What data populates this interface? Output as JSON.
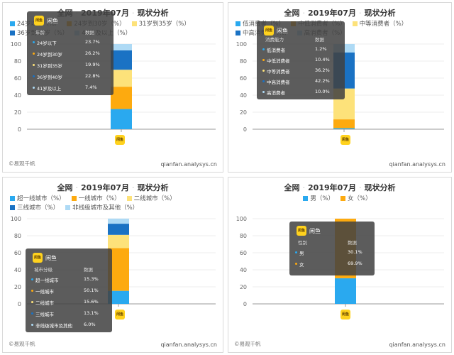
{
  "colors": {
    "c1": "#2aa9ef",
    "c2": "#fdaa0f",
    "c3": "#fde27a",
    "c4": "#1a72c4",
    "c5": "#aedaf5"
  },
  "panels": [
    {
      "title_a": "全网",
      "title_b": "2019年07月",
      "title_c": "现状分析",
      "legend": [
        {
          "label": "24岁以下（%）",
          "color": "#2aa9ef"
        },
        {
          "label": "24岁到30岁（%）",
          "color": "#fdaa0f"
        },
        {
          "label": "31岁到35岁（%）",
          "color": "#fde27a"
        },
        {
          "label": "36岁到40岁（%）",
          "color": "#1a72c4"
        },
        {
          "label": "41岁及以上（%）",
          "color": "#aedaf5"
        }
      ],
      "tooltip": {
        "app": "闲鱼",
        "col1": "年龄",
        "col2": "数据",
        "rows": [
          {
            "label": "24岁以下",
            "value": "23.7%"
          },
          {
            "label": "24岁到30岁",
            "value": "26.2%"
          },
          {
            "label": "31岁到35岁",
            "value": "19.9%"
          },
          {
            "label": "36岁到40岁",
            "value": "22.8%"
          },
          {
            "label": "41岁及以上",
            "value": "7.4%"
          }
        ]
      },
      "logo_text": "闲鱼",
      "footer_left": "©易观千帆",
      "footer_right": "qianfan.analysys.cn"
    },
    {
      "title_a": "全网",
      "title_b": "2019年07月",
      "title_c": "现状分析",
      "legend": [
        {
          "label": "低消费者（%）",
          "color": "#2aa9ef"
        },
        {
          "label": "中低消费者（%）",
          "color": "#fdaa0f"
        },
        {
          "label": "中等消费者（%）",
          "color": "#fde27a"
        },
        {
          "label": "中高消费者（%）",
          "color": "#1a72c4"
        },
        {
          "label": "高消费者（%）",
          "color": "#aedaf5"
        }
      ],
      "tooltip": {
        "app": "闲鱼",
        "col1": "消费能力",
        "col2": "数据",
        "rows": [
          {
            "label": "低消费者",
            "value": "1.2%"
          },
          {
            "label": "中低消费者",
            "value": "10.4%"
          },
          {
            "label": "中等消费者",
            "value": "36.2%"
          },
          {
            "label": "中高消费者",
            "value": "42.2%"
          },
          {
            "label": "高消费者",
            "value": "10.0%"
          }
        ]
      },
      "logo_text": "闲鱼",
      "footer_left": "",
      "footer_right": "qianfan.analysys.cn"
    },
    {
      "title_a": "全网",
      "title_b": "2019年07月",
      "title_c": "现状分析",
      "legend": [
        {
          "label": "超一线城市（%）",
          "color": "#2aa9ef"
        },
        {
          "label": "一线城市（%）",
          "color": "#fdaa0f"
        },
        {
          "label": "二线城市（%）",
          "color": "#fde27a"
        },
        {
          "label": "三线城市（%）",
          "color": "#1a72c4"
        },
        {
          "label": "非线级城市及其他（%）",
          "color": "#aedaf5"
        }
      ],
      "tooltip": {
        "app": "闲鱼",
        "col1": "城市分级",
        "col2": "数据",
        "rows": [
          {
            "label": "超一线城市",
            "value": "15.3%"
          },
          {
            "label": "一线城市",
            "value": "50.1%"
          },
          {
            "label": "二线城市",
            "value": "15.6%"
          },
          {
            "label": "三线城市",
            "value": "13.1%"
          },
          {
            "label": "非线级城市及其他",
            "value": "6.0%"
          }
        ]
      },
      "logo_text": "闲鱼",
      "footer_left": "©易观千帆",
      "footer_right": "qianfan.analysys.cn"
    },
    {
      "title_a": "全网",
      "title_b": "2019年07月",
      "title_c": "现状分析",
      "legend": [
        {
          "label": "男（%）",
          "color": "#2aa9ef"
        },
        {
          "label": "女（%）",
          "color": "#fdaa0f"
        }
      ],
      "tooltip": {
        "app": "闲鱼",
        "col1": "性别",
        "col2": "数据",
        "rows": [
          {
            "label": "男",
            "value": "30.1%"
          },
          {
            "label": "女",
            "value": "69.9%"
          }
        ]
      },
      "logo_text": "闲鱼",
      "footer_left": "©易观千帆",
      "footer_right": "qianfan.analysys.cn"
    }
  ],
  "chart_data": [
    {
      "type": "bar",
      "stacked": true,
      "categories": [
        "闲鱼"
      ],
      "ylim": [
        0,
        100
      ],
      "yticks": [
        0,
        20,
        40,
        60,
        80,
        100
      ],
      "series": [
        {
          "name": "24岁以下（%）",
          "values": [
            23.7
          ]
        },
        {
          "name": "24岁到30岁（%）",
          "values": [
            26.2
          ]
        },
        {
          "name": "31岁到35岁（%）",
          "values": [
            19.9
          ]
        },
        {
          "name": "36岁到40岁（%）",
          "values": [
            22.8
          ]
        },
        {
          "name": "41岁及以上（%）",
          "values": [
            7.4
          ]
        }
      ]
    },
    {
      "type": "bar",
      "stacked": true,
      "categories": [
        "闲鱼"
      ],
      "ylim": [
        0,
        100
      ],
      "yticks": [
        0,
        20,
        40,
        60,
        80,
        100
      ],
      "series": [
        {
          "name": "低消费者（%）",
          "values": [
            1.2
          ]
        },
        {
          "name": "中低消费者（%）",
          "values": [
            10.4
          ]
        },
        {
          "name": "中等消费者（%）",
          "values": [
            36.2
          ]
        },
        {
          "name": "中高消费者（%）",
          "values": [
            42.2
          ]
        },
        {
          "name": "高消费者（%）",
          "values": [
            10.0
          ]
        }
      ]
    },
    {
      "type": "bar",
      "stacked": true,
      "categories": [
        "闲鱼"
      ],
      "ylim": [
        0,
        100
      ],
      "yticks": [
        0,
        20,
        40,
        60,
        80,
        100
      ],
      "series": [
        {
          "name": "超一线城市（%）",
          "values": [
            15.3
          ]
        },
        {
          "name": "一线城市（%）",
          "values": [
            50.1
          ]
        },
        {
          "name": "二线城市（%）",
          "values": [
            15.6
          ]
        },
        {
          "name": "三线城市（%）",
          "values": [
            13.1
          ]
        },
        {
          "name": "非线级城市及其他（%）",
          "values": [
            6.0
          ]
        }
      ]
    },
    {
      "type": "bar",
      "stacked": true,
      "categories": [
        "闲鱼"
      ],
      "ylim": [
        0,
        100
      ],
      "yticks": [
        0,
        20,
        40,
        60,
        80,
        100
      ],
      "series": [
        {
          "name": "男（%）",
          "values": [
            30.1
          ]
        },
        {
          "name": "女（%）",
          "values": [
            69.9
          ]
        }
      ]
    }
  ]
}
